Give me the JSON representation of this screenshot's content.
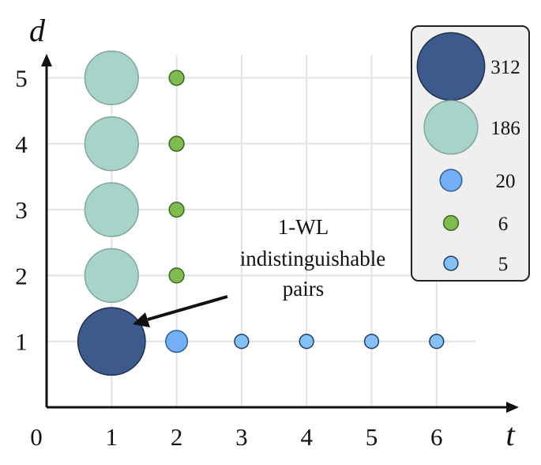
{
  "chart_data": {
    "type": "scatter",
    "xlabel": "t",
    "ylabel": "d",
    "xticks": [
      "0",
      "1",
      "2",
      "3",
      "4",
      "5",
      "6"
    ],
    "yticks": [
      "1",
      "2",
      "3",
      "4",
      "5"
    ],
    "xlim": [
      0,
      7
    ],
    "ylim": [
      0,
      5.5
    ],
    "grid": true,
    "points": [
      {
        "x": 1,
        "y": 1,
        "count": 312
      },
      {
        "x": 1,
        "y": 2,
        "count": 186
      },
      {
        "x": 1,
        "y": 3,
        "count": 186
      },
      {
        "x": 1,
        "y": 4,
        "count": 186
      },
      {
        "x": 1,
        "y": 5,
        "count": 186
      },
      {
        "x": 2,
        "y": 1,
        "count": 20
      },
      {
        "x": 2,
        "y": 2,
        "count": 6
      },
      {
        "x": 2,
        "y": 3,
        "count": 6
      },
      {
        "x": 2,
        "y": 4,
        "count": 6
      },
      {
        "x": 2,
        "y": 5,
        "count": 6
      },
      {
        "x": 3,
        "y": 1,
        "count": 5
      },
      {
        "x": 4,
        "y": 1,
        "count": 5
      },
      {
        "x": 5,
        "y": 1,
        "count": 5
      },
      {
        "x": 6,
        "y": 1,
        "count": 5
      }
    ],
    "size_styles": [
      {
        "count": 312,
        "fill": "#3c5a8c",
        "stroke": "#1f2f4d"
      },
      {
        "count": 186,
        "fill": "#a8d3c8",
        "stroke": "#7fa79d"
      },
      {
        "count": 20,
        "fill": "#74aef5",
        "stroke": "#2e5f9c"
      },
      {
        "count": 6,
        "fill": "#7dbd4f",
        "stroke": "#3d6420"
      },
      {
        "count": 5,
        "fill": "#85c0f7",
        "stroke": "#1f3f66"
      }
    ],
    "legend": {
      "position": "top-right",
      "entries": [
        "312",
        "186",
        "20",
        "6",
        "5"
      ]
    },
    "annotation": {
      "lines": [
        "1-WL",
        "indistinguishable",
        "pairs"
      ],
      "target": {
        "x": 1,
        "y": 1
      }
    }
  }
}
